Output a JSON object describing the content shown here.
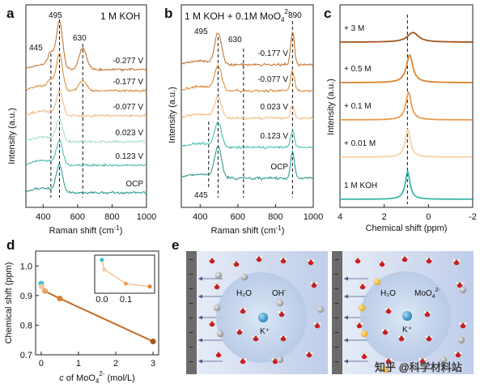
{
  "panels": {
    "a": {
      "label": "a",
      "title": "1 M KOH",
      "xlabel": "Raman shift (cm",
      "xlabel_sup": "-1",
      "xlabel_end": ")",
      "ylabel": "Intensity (a.u.)",
      "peaks": [
        "445",
        "495",
        "630"
      ]
    },
    "b": {
      "label": "b",
      "title": "1 M KOH + 0.1M MoO",
      "title_sub": "4",
      "title_sup": "2-",
      "xlabel": "Raman shift (cm",
      "xlabel_sup": "-1",
      "xlabel_end": ")",
      "ylabel": "Intensity (a.u.)",
      "peaks": [
        "495",
        "630",
        "890",
        "445"
      ]
    },
    "c": {
      "label": "c",
      "xlabel": "Chemical shift (ppm)",
      "ylabel": "Intensity (a.u.)"
    },
    "d": {
      "label": "d",
      "ylabel": "Chemical shift (ppm)",
      "xlabel_c": "c",
      "xlabel_mid": " of MoO",
      "xlabel_sub": "4",
      "xlabel_sup": "2-",
      "xlabel_end": " (mol/L)"
    },
    "e": {
      "label": "e",
      "left": {
        "h2o": "H₂O",
        "oh": "OH",
        "oh_sup": "-",
        "k": "K⁺"
      },
      "right": {
        "h2o": "H₂O",
        "moo": "MoO",
        "moo_sub": "4",
        "moo_sup": "2-",
        "k": "K⁺"
      },
      "watermark": "知乎 @科学材料站"
    }
  },
  "colors": {
    "dark_orange": "#bf6a20",
    "orange": "#d9832e",
    "light_orange": "#f2b47a",
    "pale_orange": "#f6d2a6",
    "pale_teal": "#9fd8cc",
    "teal": "#3db8a9",
    "dark_teal": "#1f9487",
    "brown": "#a2561c",
    "line_d": "#c26a22",
    "cyan_d": "#36c2cf",
    "panel_blue": "#c8d4ec",
    "electrode_gray": "#6b6b6b"
  },
  "chart_data": [
    {
      "id": "a",
      "type": "line",
      "title": "1 M KOH",
      "xlabel": "Raman shift (cm-1)",
      "ylabel": "Intensity (a.u.)",
      "xlim": [
        300,
        1000
      ],
      "xticks": [
        400,
        600,
        800,
        1000
      ],
      "peaks": [
        445,
        495,
        630
      ],
      "series": [
        {
          "name": "-0.277 V",
          "color": "#bf6a20",
          "peaks": [
            {
              "x": 445,
              "h": 0.35
            },
            {
              "x": 495,
              "h": 1.2
            },
            {
              "x": 630,
              "h": 0.55
            }
          ]
        },
        {
          "name": "-0.177 V",
          "color": "#d9832e",
          "peaks": [
            {
              "x": 445,
              "h": 0.2
            },
            {
              "x": 495,
              "h": 0.9
            },
            {
              "x": 630,
              "h": 0.25
            }
          ]
        },
        {
          "name": "-0.077 V",
          "color": "#f2b47a",
          "peaks": [
            {
              "x": 495,
              "h": 0.6
            }
          ]
        },
        {
          "name": "0.023 V",
          "color": "#9fd8cc",
          "peaks": [
            {
              "x": 495,
              "h": 0.55
            }
          ]
        },
        {
          "name": "0.123 V",
          "color": "#3db8a9",
          "peaks": [
            {
              "x": 495,
              "h": 0.6
            }
          ]
        },
        {
          "name": "OCP",
          "color": "#1f9487",
          "peaks": [
            {
              "x": 495,
              "h": 0.7
            }
          ]
        }
      ]
    },
    {
      "id": "b",
      "type": "line",
      "title": "1 M KOH + 0.1M MoO4 2-",
      "xlabel": "Raman shift (cm-1)",
      "ylabel": "Intensity (a.u.)",
      "xlim": [
        300,
        1000
      ],
      "xticks": [
        400,
        600,
        800,
        1000
      ],
      "peaks": [
        445,
        495,
        630,
        890
      ],
      "series": [
        {
          "name": "-0.177 V",
          "color": "#bf6a20",
          "peaks": [
            {
              "x": 495,
              "h": 0.9
            },
            {
              "x": 890,
              "h": 1.0
            }
          ]
        },
        {
          "name": "-0.077 V",
          "color": "#d9832e",
          "peaks": [
            {
              "x": 495,
              "h": 0.7
            },
            {
              "x": 890,
              "h": 0.6
            }
          ]
        },
        {
          "name": "0.023 V",
          "color": "#f2b47a",
          "peaks": [
            {
              "x": 495,
              "h": 0.6
            },
            {
              "x": 890,
              "h": 0.4
            }
          ]
        },
        {
          "name": "0.123 V",
          "color": "#3db8a9",
          "peaks": [
            {
              "x": 495,
              "h": 0.7
            },
            {
              "x": 890,
              "h": 0.5
            }
          ]
        },
        {
          "name": "OCP",
          "color": "#1f9487",
          "peaks": [
            {
              "x": 495,
              "h": 0.9
            },
            {
              "x": 890,
              "h": 0.8
            }
          ]
        }
      ]
    },
    {
      "id": "c",
      "type": "line",
      "xlabel": "Chemical shift (ppm)",
      "ylabel": "Intensity (a.u.)",
      "xlim": [
        4,
        -2
      ],
      "xticks": [
        4,
        2,
        0,
        -2
      ],
      "reference_x": 0.95,
      "series": [
        {
          "name": "+ 3 M",
          "color": "#a2561c",
          "center": 0.7,
          "width": 0.6,
          "height": 0.35
        },
        {
          "name": "+ 0.5 M",
          "color": "#d9832e",
          "center": 0.85,
          "width": 0.35,
          "height": 1.0
        },
        {
          "name": "+ 0.1 M",
          "color": "#ea9a4e",
          "center": 0.9,
          "width": 0.3,
          "height": 1.0
        },
        {
          "name": "+ 0.01 M",
          "color": "#f6d2a6",
          "center": 0.93,
          "width": 0.28,
          "height": 1.0
        },
        {
          "name": "1 M KOH",
          "color": "#3db8a9",
          "center": 0.94,
          "width": 0.26,
          "height": 1.0
        }
      ]
    },
    {
      "id": "d",
      "type": "scatter",
      "xlabel": "c of MoO4 2- (mol/L)",
      "ylabel": "Chemical shift (ppm)",
      "xlim": [
        -0.15,
        3.15
      ],
      "ylim": [
        0.7,
        1.05
      ],
      "xticks": [
        0,
        1,
        2,
        3
      ],
      "yticks": [
        0.7,
        0.8,
        0.9,
        1.0
      ],
      "points": [
        {
          "x": 0,
          "y": 0.94,
          "color": "#36c2cf"
        },
        {
          "x": 0.01,
          "y": 0.93,
          "color": "#f6c79a"
        },
        {
          "x": 0.1,
          "y": 0.915,
          "color": "#eda265"
        },
        {
          "x": 0.5,
          "y": 0.89,
          "color": "#d9832e"
        },
        {
          "x": 3,
          "y": 0.745,
          "color": "#a2561c"
        }
      ],
      "inset": {
        "xlim": [
          -0.03,
          0.22
        ],
        "xticks": [
          "0.0",
          "0.1"
        ],
        "points": [
          {
            "x": 0,
            "y": 0.94,
            "color": "#36c2cf"
          },
          {
            "x": 0.01,
            "y": 0.93,
            "color": "#f6c79a"
          },
          {
            "x": 0.1,
            "y": 0.915,
            "color": "#eda265"
          },
          {
            "x": 0.2,
            "y": 0.912,
            "color": "#d9832e"
          }
        ]
      }
    }
  ]
}
